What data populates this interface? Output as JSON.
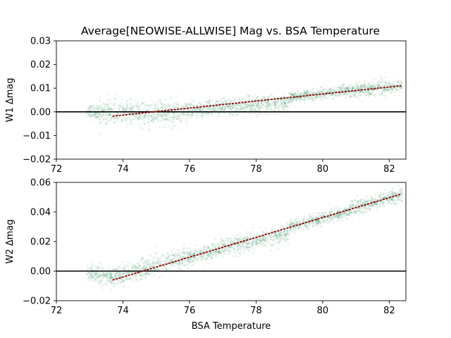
{
  "chart_data": [
    {
      "type": "scatter",
      "title": "Average[NEOWISE-ALLWISE] Mag vs. BSA Temperature",
      "xlabel": "",
      "ylabel": "W1 Δmag",
      "xlim": [
        72,
        82.5
      ],
      "ylim": [
        -0.02,
        0.03
      ],
      "xticks": [
        72,
        74,
        76,
        78,
        80,
        82
      ],
      "yticks": [
        -0.02,
        -0.01,
        0.0,
        0.01,
        0.02,
        0.03
      ],
      "ytick_labels": [
        "−0.02",
        "−0.01",
        "0.00",
        "0.01",
        "0.02",
        "0.03"
      ],
      "grid": false,
      "series": [
        {
          "point_color": "#2e8b57",
          "point_alpha": 0.12,
          "clusters": [
            {
              "x": [
                72.9,
                73.3
              ],
              "center": [
                0.0,
                0.0
              ],
              "spread": 0.0015
            },
            {
              "x": [
                73.3,
                75.8
              ],
              "center": [
                -0.0005,
                -0.0005
              ],
              "spread": 0.0025
            },
            {
              "x": [
                75.8,
                79.0
              ],
              "center": [
                0.0005,
                0.004
              ],
              "spread": 0.0018
            },
            {
              "x": [
                79.0,
                80.8
              ],
              "center": [
                0.006,
                0.009
              ],
              "spread": 0.0012
            },
            {
              "x": [
                80.8,
                82.4
              ],
              "center": [
                0.009,
                0.011
              ],
              "spread": 0.0015
            }
          ]
        }
      ],
      "fit_line": {
        "x": [
          73.7,
          82.35
        ],
        "y": [
          -0.0018,
          0.011
        ],
        "color": "#8b0000",
        "style": "dotted"
      },
      "reference_line": {
        "y": 0.0,
        "color": "#000000"
      }
    },
    {
      "type": "scatter",
      "title": "",
      "xlabel": "BSA Temperature",
      "ylabel": "W2 Δmag",
      "xlim": [
        72,
        82.5
      ],
      "ylim": [
        -0.02,
        0.06
      ],
      "xticks": [
        72,
        74,
        76,
        78,
        80,
        82
      ],
      "yticks": [
        -0.02,
        0.0,
        0.02,
        0.04,
        0.06
      ],
      "ytick_labels": [
        "−0.02",
        "0.00",
        "0.02",
        "0.04",
        "0.06"
      ],
      "grid": false,
      "series": [
        {
          "point_color": "#2e8b57",
          "point_alpha": 0.12,
          "clusters": [
            {
              "x": [
                72.9,
                73.6
              ],
              "center": [
                -0.002,
                -0.003
              ],
              "spread": 0.003
            },
            {
              "x": [
                73.6,
                76.0
              ],
              "center": [
                -0.005,
                0.01
              ],
              "spread": 0.0035
            },
            {
              "x": [
                76.0,
                79.0
              ],
              "center": [
                0.01,
                0.026
              ],
              "spread": 0.003
            },
            {
              "x": [
                79.0,
                80.8
              ],
              "center": [
                0.03,
                0.04
              ],
              "spread": 0.002
            },
            {
              "x": [
                80.8,
                82.4
              ],
              "center": [
                0.042,
                0.052
              ],
              "spread": 0.0025
            }
          ]
        }
      ],
      "fit_line": {
        "x": [
          73.7,
          82.35
        ],
        "y": [
          -0.006,
          0.052
        ],
        "color": "#8b0000",
        "style": "dotted"
      },
      "reference_line": {
        "y": 0.0,
        "color": "#000000"
      }
    }
  ]
}
